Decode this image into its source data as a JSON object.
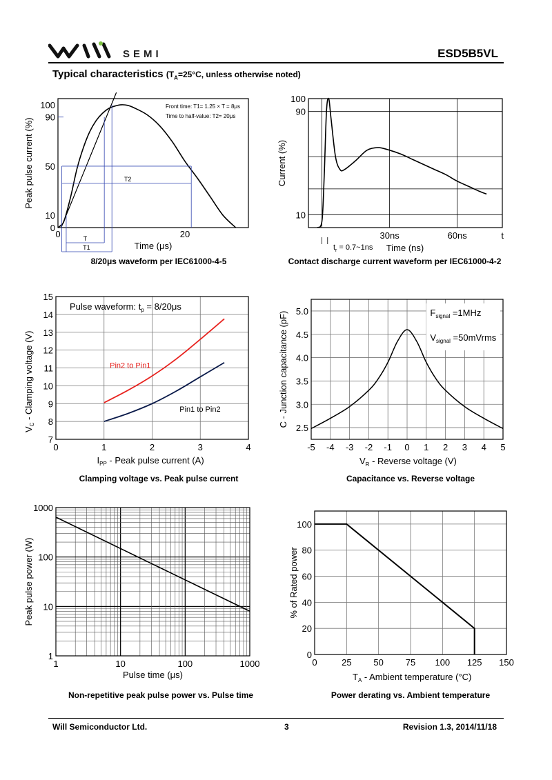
{
  "header": {
    "brand": "SEMI",
    "part_number": "ESD5B5VL",
    "section_title": "Typical characteristics",
    "condition_pre": "(T",
    "condition_sub": "A",
    "condition_post": "=25°C, unless otherwise noted)"
  },
  "footer": {
    "company": "Will Semiconductor Ltd.",
    "page": "3",
    "revision": "Revision 1.3, 2014/11/18"
  },
  "colors": {
    "axis": "#000000",
    "grid": "#000000",
    "red_series": "#e8231f",
    "navy_series": "#0a1a4a"
  },
  "chart_data": [
    {
      "id": "waveform-8-20",
      "type": "line",
      "caption": "8/20μs waveform per IEC61000-4-5",
      "xlabel": "Time (μs)",
      "ylabel": "Peak pulse current (%)",
      "xlim": [
        0,
        30
      ],
      "ylim": [
        0,
        105
      ],
      "x_ticks": [
        0,
        20
      ],
      "y_ticks": [
        0,
        10,
        50,
        90,
        100
      ],
      "notes": [
        "Front time: T1= 1.25 × T = 8μs",
        "Time to half-value: T2= 20μs"
      ],
      "markers": {
        "T": "T",
        "T1": "T1",
        "T2": "T2"
      },
      "series": [
        {
          "x": [
            0,
            0.5,
            1,
            2,
            3,
            4,
            5,
            6,
            7,
            8,
            9,
            10,
            11,
            12,
            14,
            16,
            18,
            20,
            22,
            24,
            26,
            28
          ],
          "y": [
            0,
            2,
            6,
            25,
            48,
            65,
            78,
            87,
            93,
            97,
            99,
            100,
            99.5,
            97.5,
            92,
            83,
            70,
            54,
            40,
            25,
            10,
            0
          ]
        }
      ],
      "front_line": {
        "x": [
          0.5,
          9.2
        ],
        "y": [
          0,
          110
        ]
      }
    },
    {
      "id": "contact-discharge",
      "type": "line",
      "caption": "Contact discharge current waveform per IEC61000-4-2",
      "xlabel": "Time (ns)",
      "ylabel": "Current (%)",
      "x_end_label": "t",
      "xlim": [
        -6,
        80
      ],
      "ylim": [
        0,
        100
      ],
      "x_ticks": [
        30,
        60
      ],
      "x_tick_labels": [
        "30ns",
        "60ns"
      ],
      "y_ticks": [
        10,
        90,
        100
      ],
      "rise_note": "t",
      "rise_note_sub": "r",
      "rise_note_post": " = 0.7~1ns",
      "series": [
        {
          "x": [
            -2,
            0,
            1,
            2,
            3,
            4,
            6,
            8,
            10,
            15,
            20,
            25,
            30,
            35,
            40,
            45,
            50,
            55,
            60,
            65,
            70,
            73
          ],
          "y": [
            0,
            5,
            40,
            90,
            100,
            85,
            55,
            45,
            45,
            52,
            60,
            62,
            60,
            57,
            53,
            49,
            45,
            41,
            36,
            32,
            28,
            26
          ]
        }
      ]
    },
    {
      "id": "clamping-voltage",
      "type": "line",
      "caption": "Clamping voltage vs. Peak pulse current",
      "xlabel": "I",
      "xlabel_sub": "PP",
      "xlabel_post": " - Peak pulse current (A)",
      "ylabel": "V",
      "ylabel_sub": "C",
      "ylabel_post": " - Clamping voltage (V)",
      "xlim": [
        0,
        4
      ],
      "ylim": [
        7,
        15
      ],
      "x_ticks": [
        0,
        1,
        2,
        3,
        4
      ],
      "y_ticks": [
        7,
        8,
        9,
        10,
        11,
        12,
        13,
        14,
        15
      ],
      "note_pre": "Pulse waveform: t",
      "note_sub": "p",
      "note_post": " = 8/20μs",
      "series": [
        {
          "name": "Pin2 to Pin1",
          "x": [
            1,
            1.5,
            2,
            2.5,
            3,
            3.5
          ],
          "y": [
            9.05,
            9.75,
            10.55,
            11.5,
            12.6,
            13.75
          ]
        },
        {
          "name": "Pin1 to Pin2",
          "x": [
            1,
            1.5,
            2,
            2.5,
            3,
            3.5
          ],
          "y": [
            8.0,
            8.45,
            9.0,
            9.7,
            10.5,
            11.3
          ]
        }
      ]
    },
    {
      "id": "capacitance",
      "type": "line",
      "caption": "Capacitance vs. Reverse voltage",
      "xlabel": "V",
      "xlabel_sub": "R",
      "xlabel_post": " - Reverse voltage (V)",
      "ylabel": "C - Junction capacitance (pF)",
      "xlim": [
        -5,
        5
      ],
      "ylim": [
        2.25,
        5.25
      ],
      "x_ticks": [
        -5,
        -4,
        -3,
        -2,
        -1,
        0,
        1,
        2,
        3,
        4,
        5
      ],
      "y_ticks": [
        2.5,
        3.0,
        3.5,
        4.0,
        4.5,
        5.0
      ],
      "y_tick_labels": [
        "2.5",
        "3.0",
        "3.5",
        "4.0",
        "4.5",
        "5.0"
      ],
      "legend": [
        {
          "pre": "F",
          "sub": "signal",
          "post": " =1MHz"
        },
        {
          "pre": "V",
          "sub": "signal",
          "post": " =50mVrms"
        }
      ],
      "series": [
        {
          "x": [
            -5,
            -4,
            -3,
            -2,
            -1.5,
            -1,
            -0.5,
            0,
            0.5,
            1,
            1.5,
            2,
            3,
            4,
            5
          ],
          "y": [
            2.48,
            2.7,
            2.95,
            3.3,
            3.55,
            3.9,
            4.35,
            4.6,
            4.35,
            3.9,
            3.55,
            3.3,
            2.95,
            2.7,
            2.48
          ]
        }
      ]
    },
    {
      "id": "peak-pulse-power",
      "type": "line",
      "caption": "Non-repetitive peak pulse power vs. Pulse time",
      "xlabel": "Pulse time (μs)",
      "ylabel": "Peak pulse power (W)",
      "x_scale": "log",
      "y_scale": "log",
      "xlim": [
        1,
        1000
      ],
      "ylim": [
        1,
        1000
      ],
      "x_ticks": [
        1,
        10,
        100,
        1000
      ],
      "y_ticks": [
        1,
        10,
        100,
        1000
      ],
      "x_tick_labels": [
        "1",
        "10",
        "100",
        "1000"
      ],
      "y_tick_labels": [
        "1",
        "10",
        "100",
        "1000"
      ],
      "series": [
        {
          "x": [
            1,
            1000
          ],
          "y": [
            640,
            8
          ]
        }
      ]
    },
    {
      "id": "power-derating",
      "type": "line",
      "caption": "Power derating vs. Ambient temperature",
      "xlabel": "T",
      "xlabel_sub": "A",
      "xlabel_post": " - Ambient temperature (°C)",
      "ylabel": "% of Rated power",
      "xlim": [
        0,
        150
      ],
      "ylim": [
        0,
        110
      ],
      "x_ticks": [
        0,
        25,
        50,
        75,
        100,
        125,
        150
      ],
      "y_ticks": [
        0,
        20,
        40,
        60,
        80,
        100
      ],
      "series": [
        {
          "x": [
            0,
            25,
            125,
            125
          ],
          "y": [
            100,
            100,
            20,
            0
          ]
        }
      ]
    }
  ]
}
